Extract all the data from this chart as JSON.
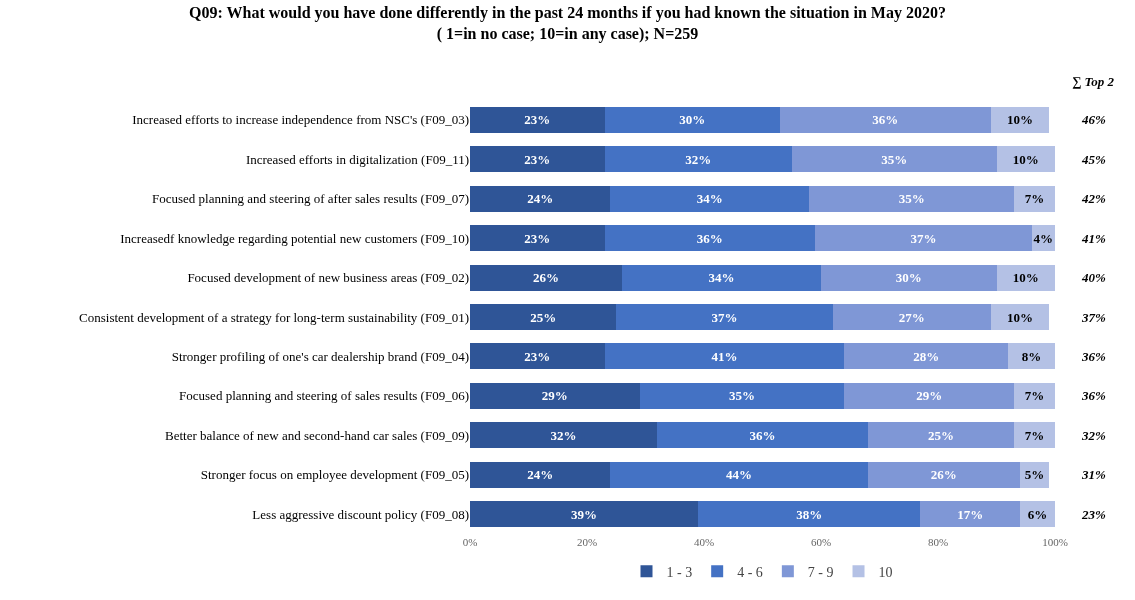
{
  "chart_data": {
    "type": "bar",
    "orientation": "horizontal",
    "stacked": true,
    "title": "Q09: What would you have done differently in the past 24 months if you had known the situation in May 2020?",
    "subtitle": "( 1=in no case; 10=in any case); N=259",
    "categories": [
      "Increased efforts to increase independence from NSC's (F09_03)",
      "Increased efforts in digitalization (F09_11)",
      "Focused planning and steering of after sales results (F09_07)",
      "Increasedf knowledge regarding potential new customers (F09_10)",
      "Focused development of new business areas (F09_02)",
      "Consistent development of a strategy for long-term sustainability (F09_01)",
      "Stronger profiling of one's car dealership brand (F09_04)",
      "Focused planning and steering of sales results (F09_06)",
      "Better balance of new and second-hand car sales (F09_09)",
      "Stronger focus on employee development (F09_05)",
      "Less aggressive discount policy (F09_08)"
    ],
    "series": [
      {
        "name": "1 - 3",
        "color": "#2f5597",
        "values": [
          23,
          23,
          24,
          23,
          26,
          25,
          23,
          29,
          32,
          24,
          39
        ],
        "value_labels": [
          "23%",
          "23%",
          "24%",
          "23%",
          "26%",
          "25%",
          "23%",
          "29%",
          "32%",
          "24%",
          "39%"
        ]
      },
      {
        "name": "4 - 6",
        "color": "#4472c4",
        "values": [
          30,
          32,
          34,
          36,
          34,
          37,
          41,
          35,
          36,
          44,
          38
        ],
        "value_labels": [
          "30%",
          "32%",
          "34%",
          "36%",
          "34%",
          "37%",
          "41%",
          "35%",
          "36%",
          "44%",
          "38%"
        ]
      },
      {
        "name": "7 - 9",
        "color": "#7f97d6",
        "values": [
          36,
          35,
          35,
          37,
          30,
          27,
          28,
          29,
          25,
          26,
          17
        ],
        "value_labels": [
          "36%",
          "35%",
          "35%",
          "37%",
          "30%",
          "27%",
          "28%",
          "29%",
          "25%",
          "26%",
          "17%"
        ]
      },
      {
        "name": "10",
        "color": "#b4c1e5",
        "values": [
          10,
          10,
          7,
          4,
          10,
          10,
          8,
          7,
          7,
          5,
          6
        ],
        "value_labels": [
          "10%",
          "10%",
          "7%",
          "4%",
          "10%",
          "10%",
          "8%",
          "7%",
          "7%",
          "5%",
          "6%"
        ]
      }
    ],
    "xlim": [
      0,
      100
    ],
    "xticks": [
      {
        "value": 0,
        "label": "0%"
      },
      {
        "value": 20,
        "label": "20%"
      },
      {
        "value": 40,
        "label": "40%"
      },
      {
        "value": 60,
        "label": "60%"
      },
      {
        "value": 80,
        "label": "80%"
      },
      {
        "value": 100,
        "label": "100%"
      }
    ],
    "legend": "bottom",
    "annotations": [
      "∑ Top 2",
      "46%",
      "45%",
      "42%",
      "41%",
      "40%",
      "37%",
      "36%",
      "36%",
      "32%",
      "31%",
      "23%"
    ]
  }
}
